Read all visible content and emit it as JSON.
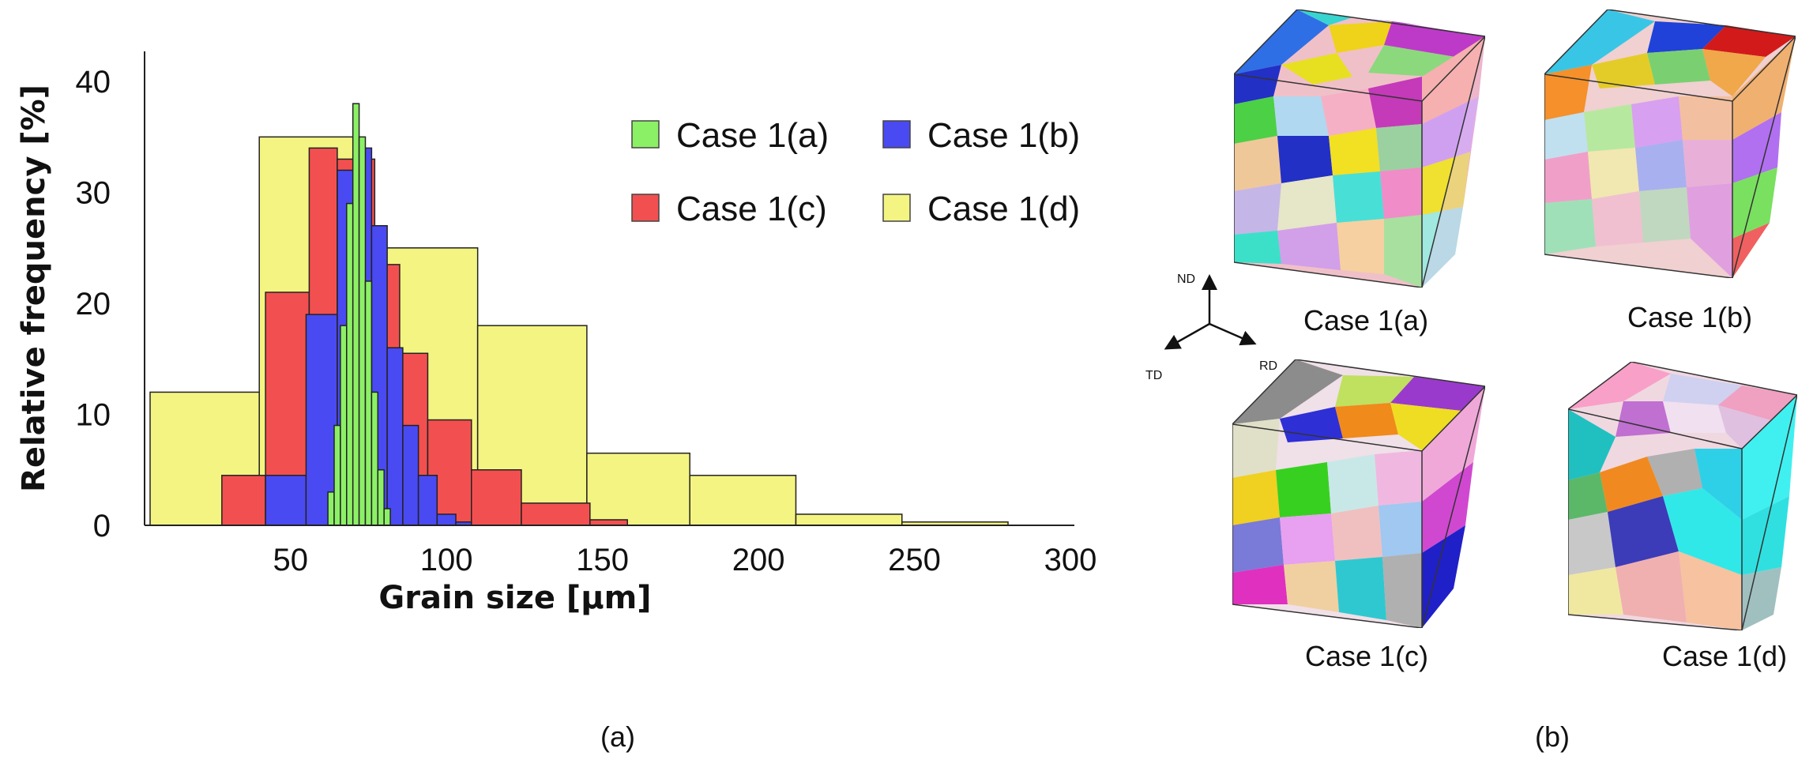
{
  "chart_data": {
    "type": "bar",
    "ylabel": "Relative frequency [%]",
    "xlabel": "Grain size [µm]",
    "xlim": [
      5,
      300
    ],
    "ylim": [
      0,
      42
    ],
    "x_ticks": [
      50,
      100,
      150,
      200,
      250,
      300
    ],
    "y_ticks": [
      0,
      10,
      20,
      30,
      40
    ],
    "legend": {
      "placement": "top-right"
    },
    "series": [
      {
        "name": "Case 1(d)",
        "color": "#f4f482",
        "bins": [
          [
            5,
            40,
            12
          ],
          [
            40,
            72,
            35
          ],
          [
            72,
            110,
            25
          ],
          [
            110,
            145,
            18
          ],
          [
            145,
            178,
            6.5
          ],
          [
            178,
            212,
            4.5
          ],
          [
            212,
            246,
            1
          ],
          [
            246,
            280,
            0.3
          ]
        ]
      },
      {
        "name": "Case 1(c)",
        "color": "#f25050",
        "bins": [
          [
            28,
            42,
            4.5
          ],
          [
            42,
            56,
            21
          ],
          [
            56,
            65,
            34
          ],
          [
            65,
            77,
            33
          ],
          [
            77,
            85,
            23.5
          ],
          [
            85,
            94,
            15.5
          ],
          [
            94,
            108,
            9.5
          ],
          [
            108,
            124,
            5
          ],
          [
            124,
            146,
            2
          ],
          [
            146,
            158,
            0.5
          ]
        ]
      },
      {
        "name": "Case 1(b)",
        "color": "#4a4af2",
        "bins": [
          [
            42,
            55,
            4.5
          ],
          [
            55,
            65,
            19
          ],
          [
            65,
            71,
            32
          ],
          [
            71,
            76,
            34
          ],
          [
            76,
            81,
            27
          ],
          [
            81,
            86,
            16
          ],
          [
            86,
            91,
            9
          ],
          [
            91,
            97,
            4.5
          ],
          [
            97,
            103,
            1
          ],
          [
            103,
            108,
            0.3
          ]
        ]
      },
      {
        "name": "Case 1(a)",
        "color": "#8cf066",
        "bins": [
          [
            62,
            64,
            3
          ],
          [
            64,
            66,
            9
          ],
          [
            66,
            68,
            18
          ],
          [
            68,
            70,
            29
          ],
          [
            70,
            72,
            38
          ],
          [
            72,
            74,
            35
          ],
          [
            74,
            76,
            22
          ],
          [
            76,
            78,
            12
          ],
          [
            78,
            80,
            5
          ],
          [
            80,
            82,
            1.5
          ]
        ]
      }
    ]
  },
  "panel_a_label": "(a)",
  "panel_b_label": "(b)",
  "orientation": {
    "nd": "ND",
    "td": "TD",
    "rd": "RD"
  },
  "cubes": [
    {
      "label": "Case 1(a)"
    },
    {
      "label": "Case 1(b)"
    },
    {
      "label": "Case 1(c)"
    },
    {
      "label": "Case 1(d)"
    }
  ]
}
